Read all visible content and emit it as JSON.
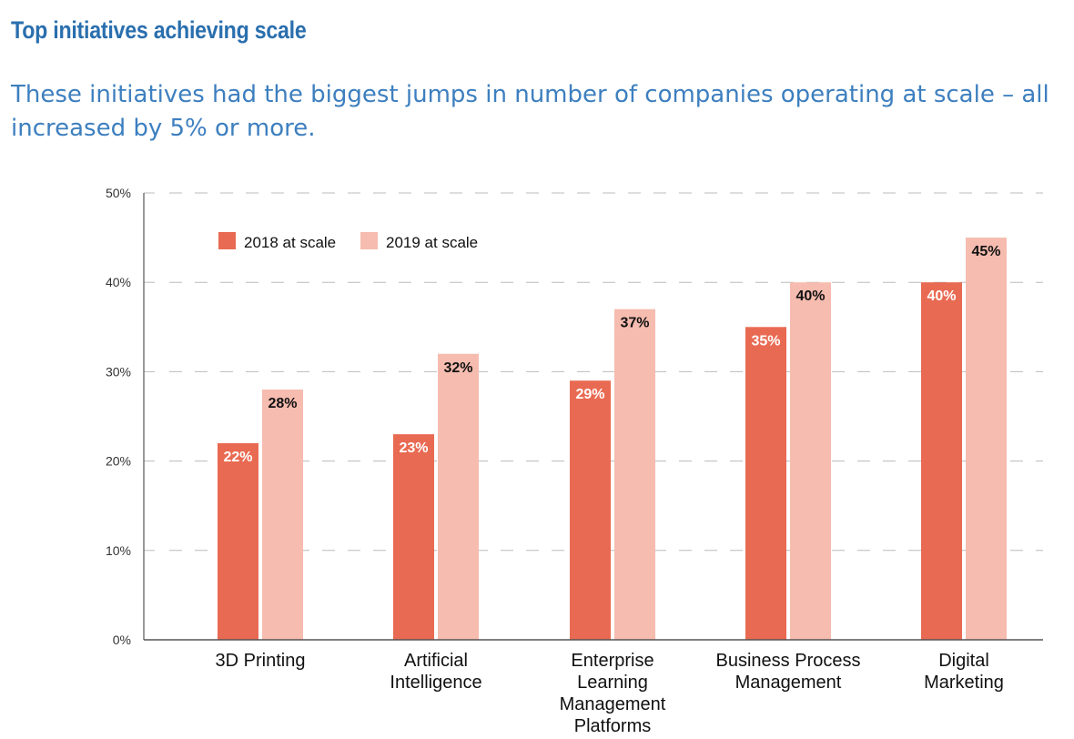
{
  "header": {
    "title": "Top initiatives achieving scale",
    "subtitle": "These initiatives had the biggest jumps in number of companies operating at scale – all increased by 5% or more."
  },
  "colors": {
    "title": "#2a6fae",
    "subtitle": "#3d7fbf",
    "series_2018": "#e96a52",
    "series_2019": "#f6bcaf",
    "gridline": "#bbbbbb",
    "axis": "#555555"
  },
  "chart_data": {
    "type": "bar",
    "categories": [
      [
        "3D Printing"
      ],
      [
        "Artificial",
        "Intelligence"
      ],
      [
        "Enterprise",
        "Learning",
        "Management",
        "Platforms"
      ],
      [
        "Business Process",
        "Management"
      ],
      [
        "Digital",
        "Marketing"
      ]
    ],
    "series": [
      {
        "name": "2018 at scale",
        "values": [
          22,
          23,
          29,
          35,
          40
        ],
        "labels": [
          "22%",
          "23%",
          "29%",
          "35%",
          "40%"
        ]
      },
      {
        "name": "2019 at scale",
        "values": [
          28,
          32,
          37,
          40,
          45
        ],
        "labels": [
          "28%",
          "32%",
          "37%",
          "40%",
          "45%"
        ]
      }
    ],
    "ylim": [
      0,
      50
    ],
    "yticks": [
      {
        "value": 0,
        "label": "0%"
      },
      {
        "value": 10,
        "label": "10%"
      },
      {
        "value": 20,
        "label": "20%"
      },
      {
        "value": 30,
        "label": "30%"
      },
      {
        "value": 40,
        "label": "40%"
      },
      {
        "value": 50,
        "label": "50%"
      }
    ],
    "grid": "dashed horizontal",
    "legend": "top-left",
    "xlabel": "",
    "ylabel": ""
  }
}
